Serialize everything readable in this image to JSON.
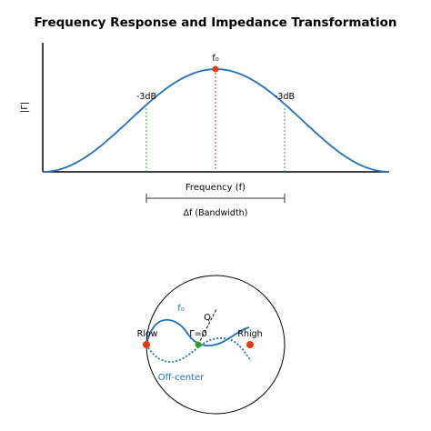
{
  "figure": {
    "title": "Frequency Response and Impedance Transformation"
  },
  "frequency_plot": {
    "ylabel": "|Γ|",
    "xlabel": "Frequency (f)",
    "center_label": "f₀",
    "left_marker_label": "-3dB",
    "right_marker_label": "-3dB",
    "bandwidth_label": "Δf (Bandwidth)",
    "colors": {
      "curve": "#1f6fbf",
      "center": "#e8380d",
      "marker": "#2ca02c",
      "center_line": "#d62728"
    }
  },
  "smith_chart": {
    "label_low": "Rlow",
    "label_high": "Rhigh",
    "label_center": "Γ=0",
    "label_q": "Q",
    "label_f0": "f₀",
    "label_offcenter": "Off-center",
    "colors": {
      "path": "#1f6fbf",
      "endpoint": "#e8380d",
      "center": "#2ca02c"
    }
  },
  "chart_data": {
    "type": "line",
    "title": "Frequency Response and Impedance Transformation",
    "xlabel": "Frequency (f)",
    "ylabel": "|Γ|",
    "grid": false,
    "series": [
      {
        "x": [
          0,
          0.1,
          0.2,
          0.3,
          0.4,
          0.5,
          0.6,
          0.7,
          0.8,
          0.9,
          1.0
        ],
        "values": [
          0.0,
          0.08,
          0.28,
          0.57,
          0.86,
          1.0,
          0.86,
          0.57,
          0.28,
          0.08,
          0.0
        ]
      }
    ],
    "annotations": [
      "f₀",
      "-3dB",
      "-3dB",
      "Δf (Bandwidth)"
    ]
  }
}
